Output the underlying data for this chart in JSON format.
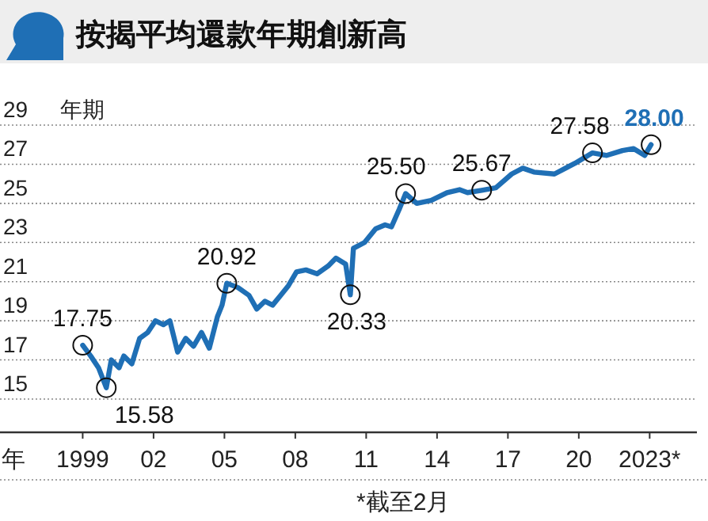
{
  "chart_data": {
    "type": "line",
    "title": "按揭平均還款年期創新高",
    "xlabel": "年",
    "ylabel": "年期",
    "x": [
      1999.0,
      1999.34,
      1999.67,
      2000.0,
      2000.21,
      2000.54,
      2000.74,
      2001.08,
      2001.41,
      2001.75,
      2002.08,
      2002.42,
      2002.69,
      2003.02,
      2003.36,
      2003.69,
      2004.03,
      2004.36,
      2004.7,
      2004.9,
      2005.1,
      2005.57,
      2006.04,
      2006.37,
      2006.71,
      2007.04,
      2007.38,
      2007.71,
      2008.05,
      2008.45,
      2008.92,
      2009.39,
      2009.72,
      2010.13,
      2010.33,
      2010.46,
      2010.93,
      2011.4,
      2011.8,
      2012.07,
      2012.4,
      2012.67,
      2013.14,
      2013.75,
      2014.42,
      2014.95,
      2015.29,
      2015.89,
      2016.49,
      2017.16,
      2017.63,
      2018.1,
      2018.97,
      2019.44,
      2019.84,
      2020.58,
      2021.18,
      2021.85,
      2022.32,
      2022.79,
      2023.06
    ],
    "series": [
      {
        "color": "#1f6fb5",
        "values": [
          17.75,
          17.2,
          16.6,
          15.58,
          17.0,
          16.6,
          17.2,
          16.8,
          18.1,
          18.4,
          19.0,
          18.8,
          19.0,
          17.4,
          18.1,
          17.7,
          18.4,
          17.6,
          19.2,
          19.8,
          20.92,
          20.7,
          20.3,
          19.6,
          20.0,
          19.8,
          20.3,
          20.8,
          21.5,
          21.6,
          21.4,
          21.8,
          22.2,
          21.9,
          20.33,
          22.7,
          23.0,
          23.7,
          23.9,
          23.8,
          24.7,
          25.5,
          25.0,
          25.15,
          25.55,
          25.7,
          25.55,
          25.67,
          25.8,
          26.5,
          26.8,
          26.6,
          26.5,
          26.8,
          27.05,
          27.58,
          27.45,
          27.7,
          27.8,
          27.45,
          28.0
        ]
      }
    ],
    "xlim": [
      1995.5,
      2025.0
    ],
    "ylim": [
      13.3,
      29
    ],
    "xticks": [
      {
        "value": 1999,
        "label": "1999"
      },
      {
        "value": 2002,
        "label": "02"
      },
      {
        "value": 2005,
        "label": "05"
      },
      {
        "value": 2008,
        "label": "08"
      },
      {
        "value": 2011,
        "label": "11"
      },
      {
        "value": 2014,
        "label": "14"
      },
      {
        "value": 2017,
        "label": "17"
      },
      {
        "value": 2020,
        "label": "20"
      },
      {
        "value": 2023,
        "label": "2023*"
      }
    ],
    "yticks": [
      15,
      17,
      19,
      21,
      23,
      25,
      27,
      29
    ],
    "grid": "y",
    "marker": "none",
    "line_style": "solid",
    "annotations": [
      {
        "text": "17.75",
        "x": 1999.0,
        "y": 17.75
      },
      {
        "text": "15.58",
        "x": 2000.0,
        "y": 15.58
      },
      {
        "text": "20.92",
        "x": 2005.1,
        "y": 20.92
      },
      {
        "text": "20.33",
        "x": 2010.33,
        "y": 20.33
      },
      {
        "text": "25.50",
        "x": 2012.67,
        "y": 25.5
      },
      {
        "text": "25.67",
        "x": 2015.89,
        "y": 25.67
      },
      {
        "text": "27.58",
        "x": 2020.58,
        "y": 27.58
      },
      {
        "text": "28.00",
        "x": 2023.06,
        "y": 28.0
      },
      "*截至2月"
    ]
  }
}
